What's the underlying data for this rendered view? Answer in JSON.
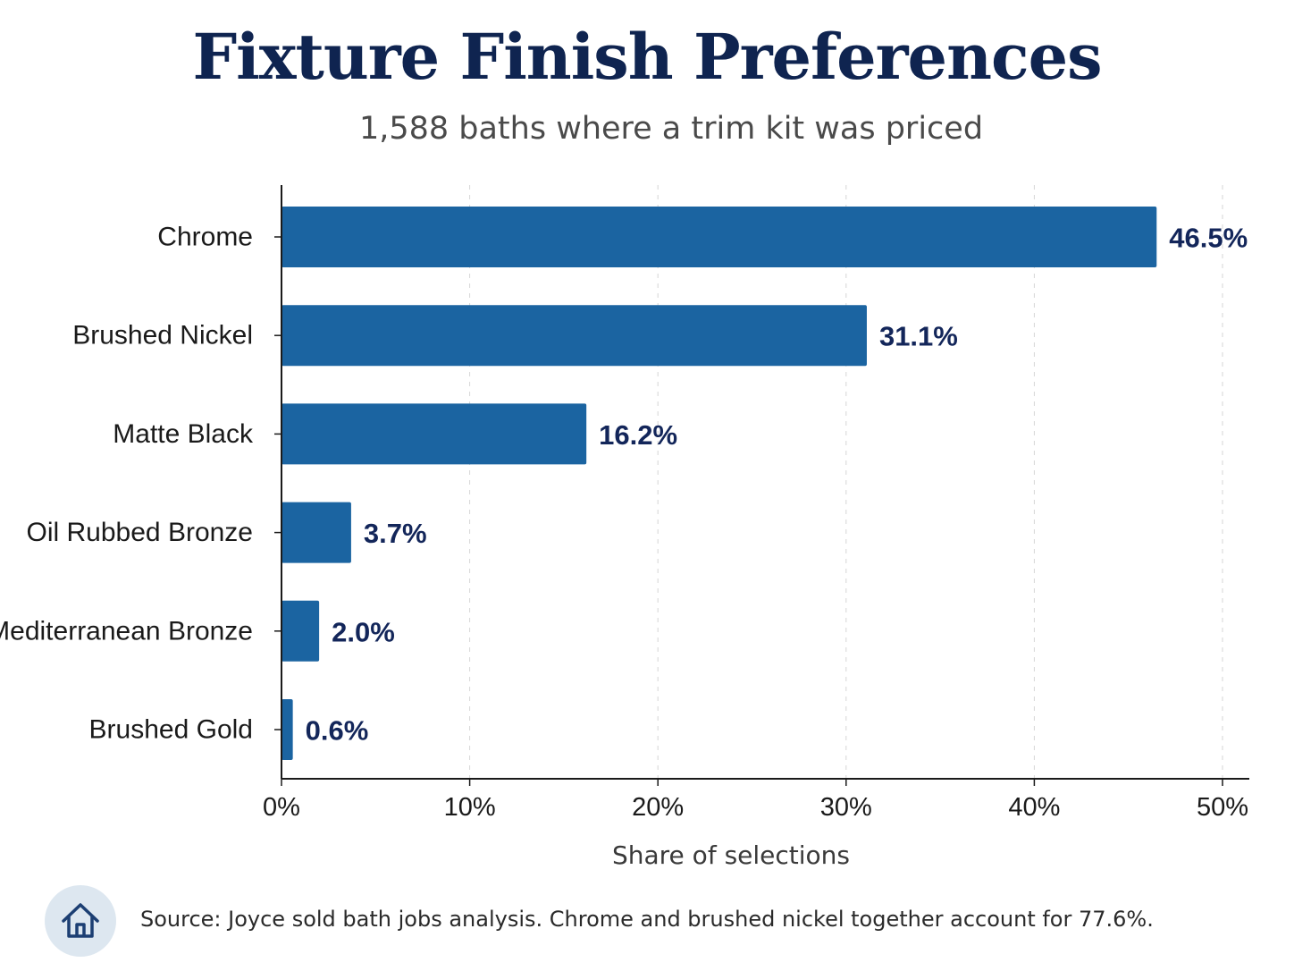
{
  "colors": {
    "bar": "#1b64a1",
    "title": "#0f2450",
    "value_label": "#13265a",
    "axis": "#1a1a1a",
    "grid": "#d6d6d6",
    "icon_bg": "#dde7f0",
    "icon_stroke": "#1c3f73"
  },
  "chart_data": {
    "type": "bar",
    "orientation": "horizontal",
    "title": "Fixture Finish Preferences",
    "subtitle": "1,588 baths where a trim kit was priced",
    "categories": [
      "Chrome",
      "Brushed Nickel",
      "Matte Black",
      "Oil Rubbed Bronze",
      "Mediterranean Bronze",
      "Brushed Gold"
    ],
    "values": [
      46.5,
      31.1,
      16.2,
      3.7,
      2.0,
      0.6
    ],
    "value_labels": [
      "46.5%",
      "31.1%",
      "16.2%",
      "3.7%",
      "2.0%",
      "0.6%"
    ],
    "xlabel": "Share of selections",
    "ylabel": "",
    "xlim": [
      0,
      50
    ],
    "xticks": [
      0,
      10,
      20,
      30,
      40,
      50
    ],
    "xtick_labels": [
      "0%",
      "10%",
      "20%",
      "30%",
      "40%",
      "50%"
    ],
    "grid": "vertical dashed",
    "legend": "none"
  },
  "footer": {
    "icon": "home-icon",
    "source": "Source: Joyce sold bath jobs analysis. Chrome and brushed nickel together account for 77.6%."
  }
}
